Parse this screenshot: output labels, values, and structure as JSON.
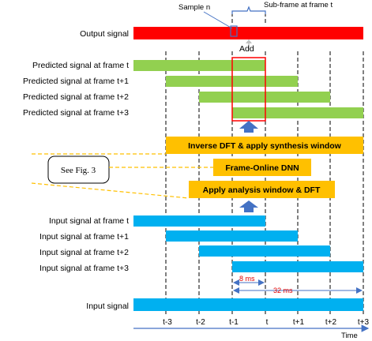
{
  "annotations": {
    "sample_n": "Sample n",
    "sub_frame": "Sub-frame at frame t",
    "add": "Add",
    "see_fig": "See Fig. 3",
    "ms8": "8 ms",
    "ms32": "32 ms",
    "time": "Time"
  },
  "rows": {
    "output": "Output signal",
    "pred_t": "Predicted signal at frame t",
    "pred_t1": "Predicted signal at frame t+1",
    "pred_t2": "Predicted signal at frame t+2",
    "pred_t3": "Predicted signal at frame t+3",
    "in_t": "Input signal at frame t",
    "in_t1": "Input signal at frame t+1",
    "in_t2": "Input signal at frame t+2",
    "in_t3": "Input signal at frame t+3",
    "input": "Input signal"
  },
  "blocks": {
    "inverse_dft": "Inverse DFT & apply synthesis window",
    "dnn": "Frame-Online DNN",
    "analysis": "Apply analysis window & DFT"
  },
  "ticks": [
    "t-3",
    "t-2",
    "t-1",
    "t",
    "t+1",
    "t+2",
    "t+3"
  ],
  "colors": {
    "output": "#ff0000",
    "predicted": "#92d050",
    "input": "#00b0f0",
    "block": "#ffc000",
    "arrow": "#4472c4",
    "highlight": "#ff0000"
  }
}
